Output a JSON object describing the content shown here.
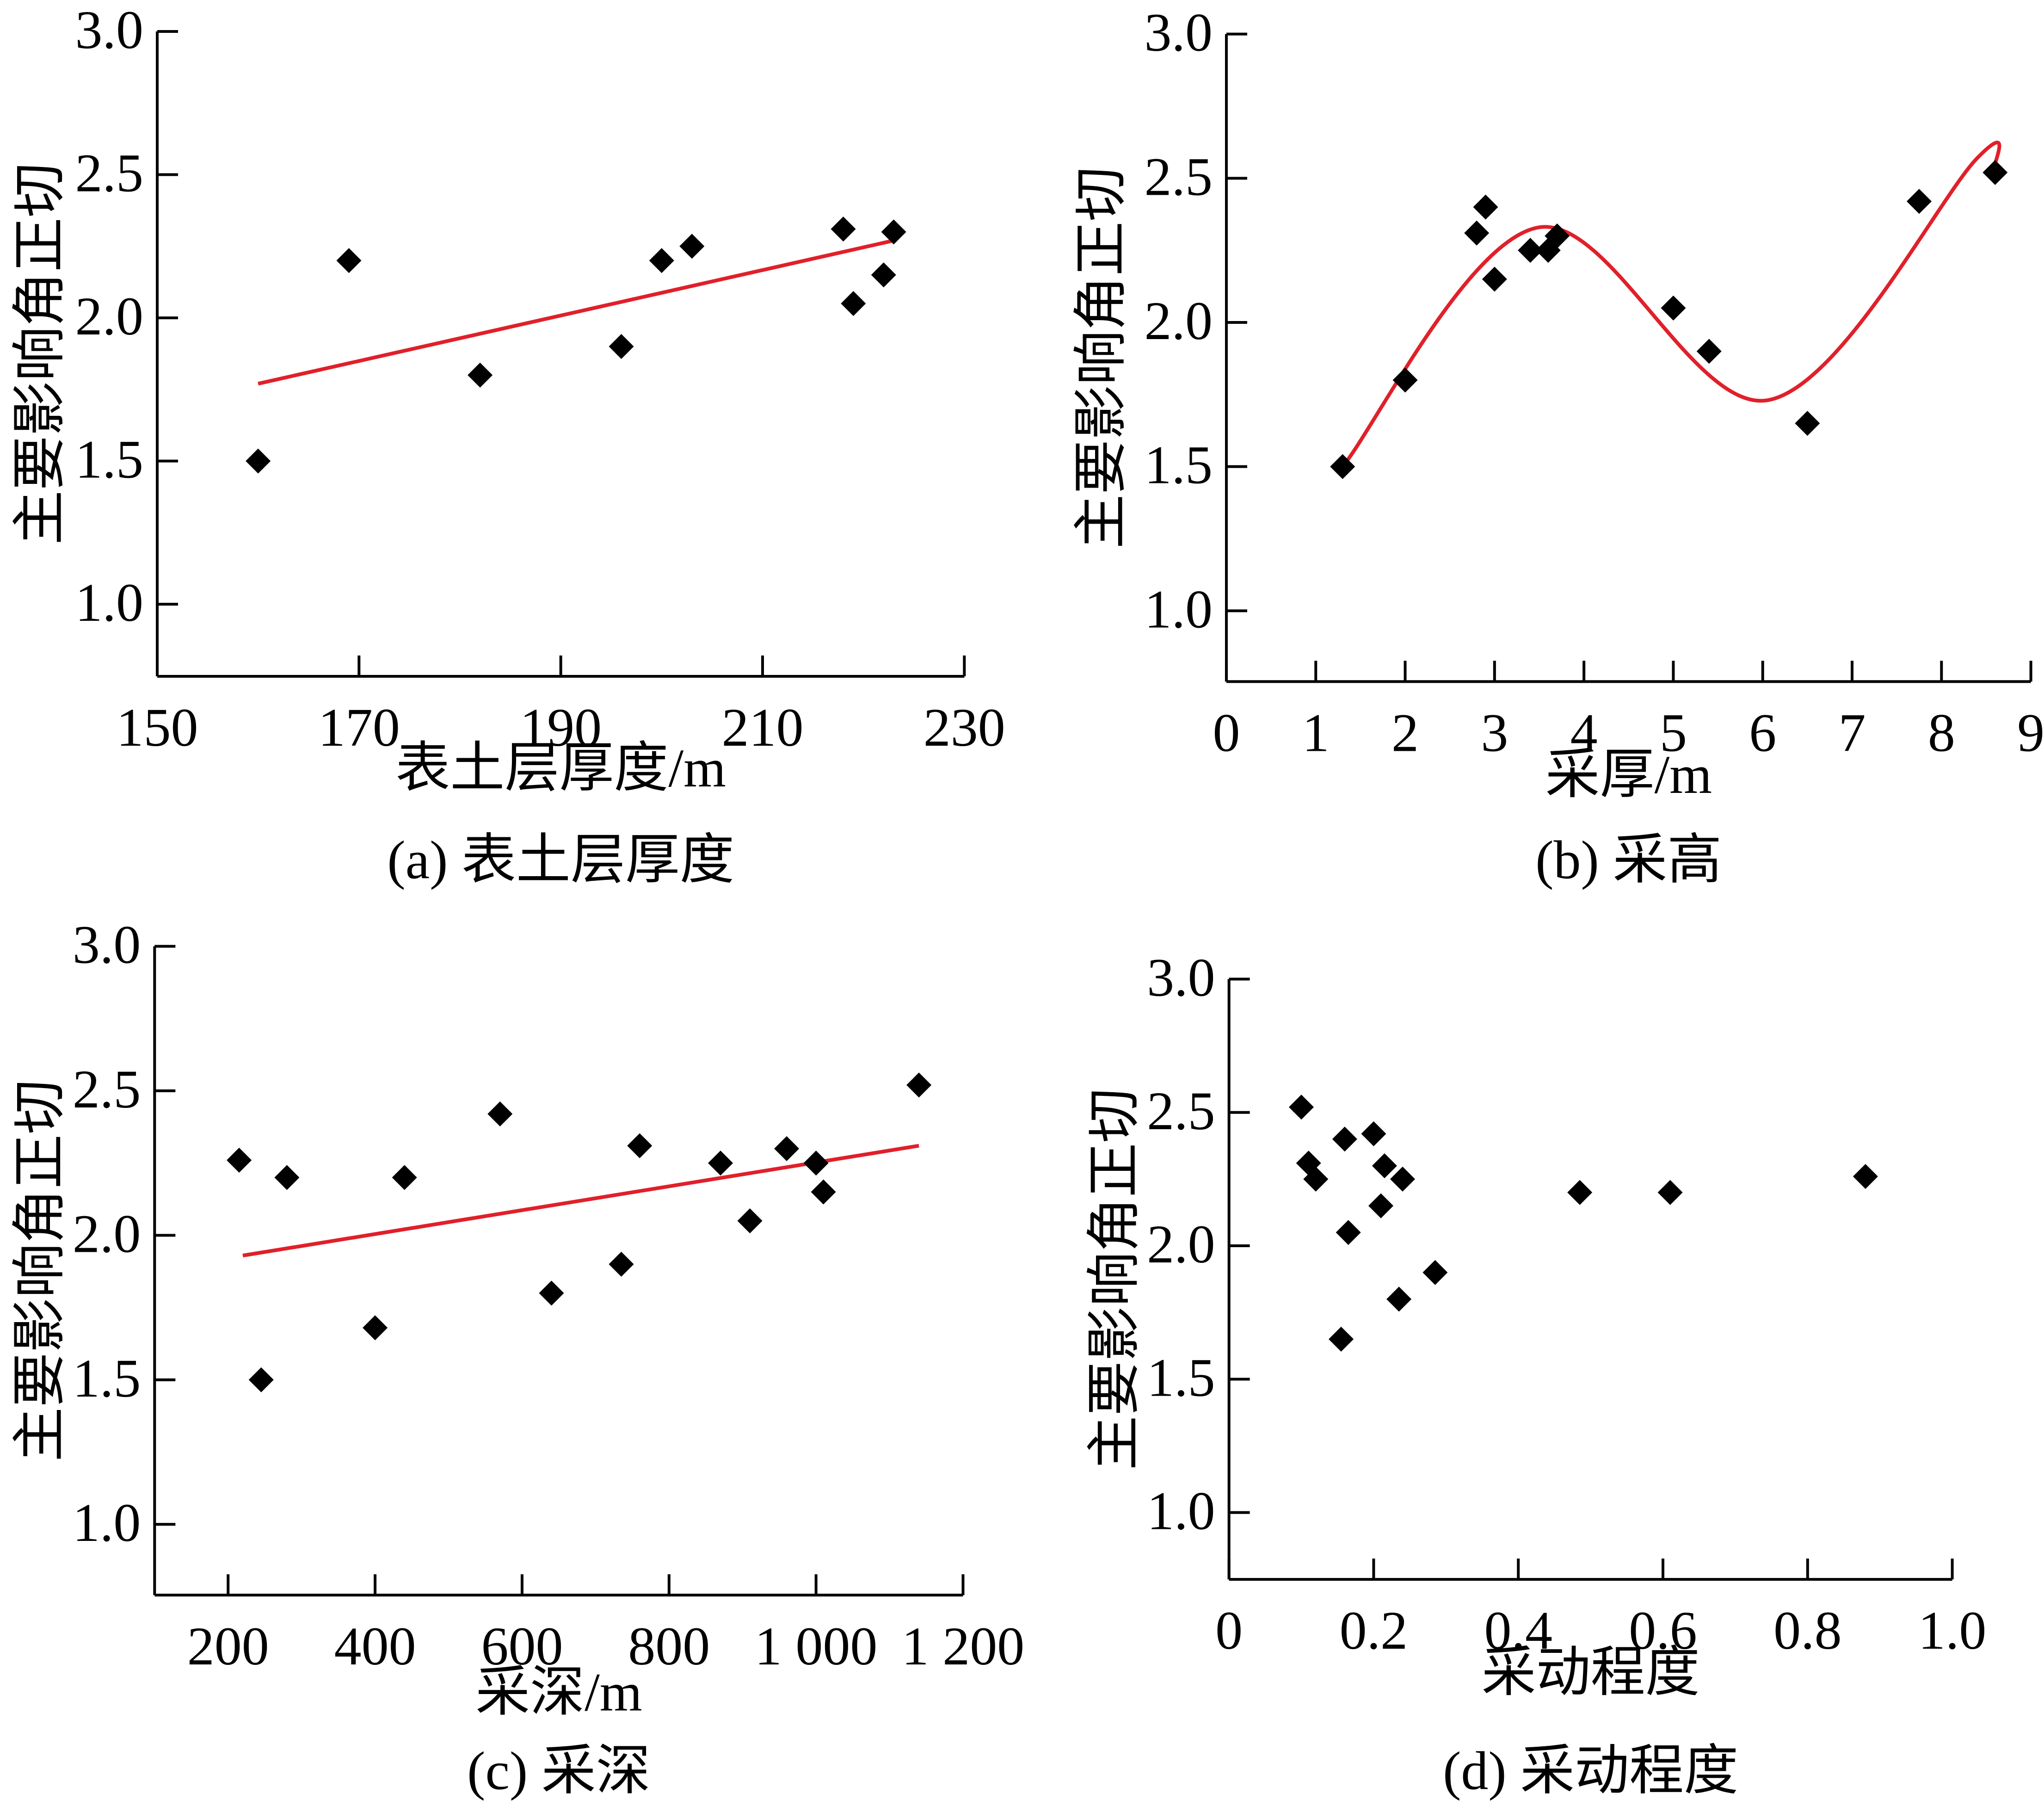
{
  "chart_data": [
    {
      "id": "a",
      "type": "scatter",
      "caption": "(a) 表土层厚度",
      "xlabel": "表土层厚度/m",
      "ylabel": "主要影响角正切",
      "xlim": [
        150,
        230
      ],
      "ylim": [
        0.75,
        3.0
      ],
      "xticks": [
        150,
        170,
        190,
        210,
        230
      ],
      "xtick_labels": [
        "150",
        "170",
        "190",
        "210",
        "230"
      ],
      "yticks": [
        1.0,
        1.5,
        2.0,
        2.5,
        3.0
      ],
      "ytick_labels": [
        "1.0",
        "1.5",
        "2.0",
        "2.5",
        "3.0"
      ],
      "points": [
        [
          160,
          1.5
        ],
        [
          169,
          2.2
        ],
        [
          182,
          1.8
        ],
        [
          196,
          1.9
        ],
        [
          200,
          2.2
        ],
        [
          203,
          2.25
        ],
        [
          218,
          2.31
        ],
        [
          219,
          2.05
        ],
        [
          222,
          2.15
        ],
        [
          223,
          2.3
        ]
      ],
      "fit": {
        "type": "linear",
        "points": [
          [
            160,
            1.77
          ],
          [
            223,
            2.27
          ]
        ]
      }
    },
    {
      "id": "b",
      "type": "scatter",
      "caption": "(b) 采高",
      "xlabel": "采厚/m",
      "ylabel": "主要影响角正切",
      "xlim": [
        0,
        9
      ],
      "ylim": [
        0.75,
        3.0
      ],
      "xticks": [
        0,
        1,
        2,
        3,
        4,
        5,
        6,
        7,
        8,
        9
      ],
      "xtick_labels": [
        "0",
        "1",
        "2",
        "3",
        "4",
        "5",
        "6",
        "7",
        "8",
        "9"
      ],
      "yticks": [
        1.0,
        1.5,
        2.0,
        2.5,
        3.0
      ],
      "ytick_labels": [
        "1.0",
        "1.5",
        "2.0",
        "2.5",
        "3.0"
      ],
      "points": [
        [
          1.3,
          1.5
        ],
        [
          2.0,
          1.8
        ],
        [
          2.8,
          2.31
        ],
        [
          2.9,
          2.4
        ],
        [
          3.0,
          2.15
        ],
        [
          3.4,
          2.25
        ],
        [
          3.6,
          2.25
        ],
        [
          3.7,
          2.3
        ],
        [
          5.0,
          2.05
        ],
        [
          5.4,
          1.9
        ],
        [
          6.5,
          1.65
        ],
        [
          7.75,
          2.42
        ],
        [
          8.6,
          2.52
        ]
      ],
      "fit": {
        "type": "smooth",
        "points": [
          [
            1.3,
            1.5
          ],
          [
            3.5,
            2.33
          ],
          [
            6.05,
            1.73
          ],
          [
            8.4,
            2.57
          ],
          [
            8.6,
            2.54
          ]
        ]
      }
    },
    {
      "id": "c",
      "type": "scatter",
      "caption": "(c) 采深",
      "xlabel": "采深/m",
      "ylabel": "主要影响角正切",
      "xlim": [
        100,
        1200
      ],
      "ylim": [
        0.75,
        3.0
      ],
      "xticks": [
        200,
        400,
        600,
        800,
        1000,
        1200
      ],
      "xtick_labels": [
        "200",
        "400",
        "600",
        "800",
        "1 000",
        "1 200"
      ],
      "yticks": [
        1.0,
        1.5,
        2.0,
        2.5,
        3.0
      ],
      "ytick_labels": [
        "1.0",
        "1.5",
        "2.0",
        "2.5",
        "3.0"
      ],
      "points": [
        [
          215,
          2.26
        ],
        [
          245,
          1.5
        ],
        [
          280,
          2.2
        ],
        [
          400,
          1.68
        ],
        [
          440,
          2.2
        ],
        [
          570,
          2.42
        ],
        [
          640,
          1.8
        ],
        [
          735,
          1.9
        ],
        [
          760,
          2.31
        ],
        [
          870,
          2.25
        ],
        [
          910,
          2.05
        ],
        [
          960,
          2.3
        ],
        [
          1000,
          2.25
        ],
        [
          1010,
          2.15
        ],
        [
          1140,
          2.52
        ]
      ],
      "fit": {
        "type": "linear",
        "points": [
          [
            220,
            1.93
          ],
          [
            1140,
            2.31
          ]
        ]
      }
    },
    {
      "id": "d",
      "type": "scatter",
      "caption": "(d) 采动程度",
      "xlabel": "采动程度",
      "ylabel": "主要影响角正切",
      "xlim": [
        0,
        1.0
      ],
      "ylim": [
        0.75,
        3.0
      ],
      "xticks": [
        0,
        0.2,
        0.4,
        0.6,
        0.8,
        1.0
      ],
      "xtick_labels": [
        "0",
        "0.2",
        "0.4",
        "0.6",
        "0.8",
        "1.0"
      ],
      "yticks": [
        1.0,
        1.5,
        2.0,
        2.5,
        3.0
      ],
      "ytick_labels": [
        "1.0",
        "1.5",
        "2.0",
        "2.5",
        "3.0"
      ],
      "points": [
        [
          0.1,
          2.52
        ],
        [
          0.11,
          2.31
        ],
        [
          0.12,
          2.25
        ],
        [
          0.16,
          2.4
        ],
        [
          0.155,
          1.65
        ],
        [
          0.165,
          2.05
        ],
        [
          0.2,
          2.42
        ],
        [
          0.21,
          2.15
        ],
        [
          0.215,
          2.3
        ],
        [
          0.235,
          1.8
        ],
        [
          0.24,
          2.25
        ],
        [
          0.285,
          1.9
        ],
        [
          0.485,
          2.2
        ],
        [
          0.61,
          2.2
        ],
        [
          0.88,
          2.26
        ]
      ],
      "fit": null
    }
  ],
  "colors": {
    "fit_line": "#e0202a",
    "marker": "#000000",
    "axis": "#000000"
  }
}
